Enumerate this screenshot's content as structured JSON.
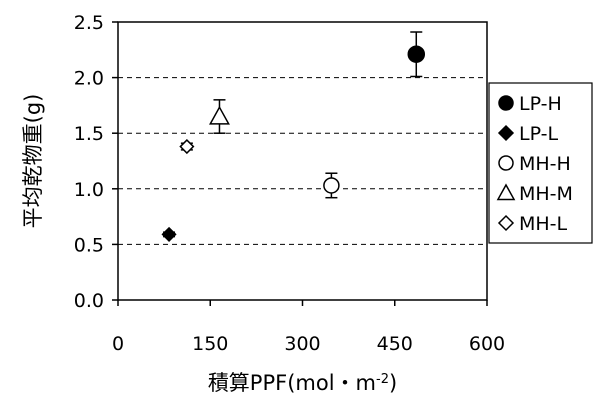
{
  "chart_data": {
    "type": "scatter",
    "xlabel": "積算PPF(mol・m",
    "xlabel_sup": "-2",
    "xlabel_close": ")",
    "ylabel": "平均乾物重(g)",
    "xlim": [
      0,
      600
    ],
    "ylim": [
      0,
      2.5
    ],
    "x_ticks": [
      0,
      150,
      300,
      450,
      600
    ],
    "y_ticks": [
      0.0,
      0.5,
      1.0,
      1.5,
      2.0,
      2.5
    ],
    "x_tick_labels": [
      "0",
      "150",
      "300",
      "450",
      "600"
    ],
    "y_tick_labels": [
      "0.0",
      "0.5",
      "1.0",
      "1.5",
      "2.0",
      "2.5"
    ],
    "grid": "horizontal-dashed",
    "legend_position": "right",
    "series": [
      {
        "name": "LP-H",
        "marker": "filled-circle",
        "x": 485,
        "y": 2.21,
        "err": 0.2
      },
      {
        "name": "LP-L",
        "marker": "filled-diamond",
        "x": 83,
        "y": 0.59,
        "err": 0.02
      },
      {
        "name": "MH-H",
        "marker": "open-circle",
        "x": 347,
        "y": 1.03,
        "err": 0.11
      },
      {
        "name": "MH-M",
        "marker": "open-triangle",
        "x": 165,
        "y": 1.65,
        "err": 0.15
      },
      {
        "name": "MH-L",
        "marker": "open-diamond",
        "x": 112,
        "y": 1.38,
        "err": 0.03
      }
    ]
  }
}
